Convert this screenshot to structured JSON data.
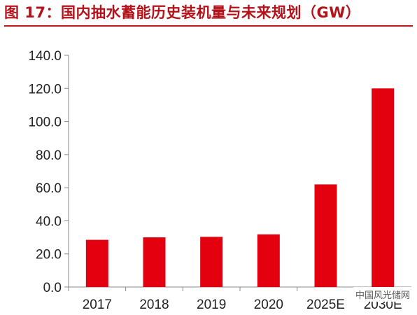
{
  "title": "图 17：国内抽水蓄能历史装机量与未来规划（GW）",
  "watermark": "中国风光储网",
  "chart_data": {
    "type": "bar",
    "title": "国内抽水蓄能历史装机量与未来规划（GW）",
    "categories": [
      "2017",
      "2018",
      "2019",
      "2020",
      "2025E",
      "2030E"
    ],
    "values": [
      28.5,
      30.0,
      30.3,
      31.8,
      62.0,
      120.0
    ],
    "xlabel": "",
    "ylabel": "",
    "ylim": [
      0,
      140
    ],
    "yticks": [
      "0.0",
      "20.0",
      "40.0",
      "60.0",
      "80.0",
      "100.0",
      "120.0",
      "140.0"
    ],
    "grid": false,
    "legend": "none",
    "bar_color": "#e3000f"
  }
}
